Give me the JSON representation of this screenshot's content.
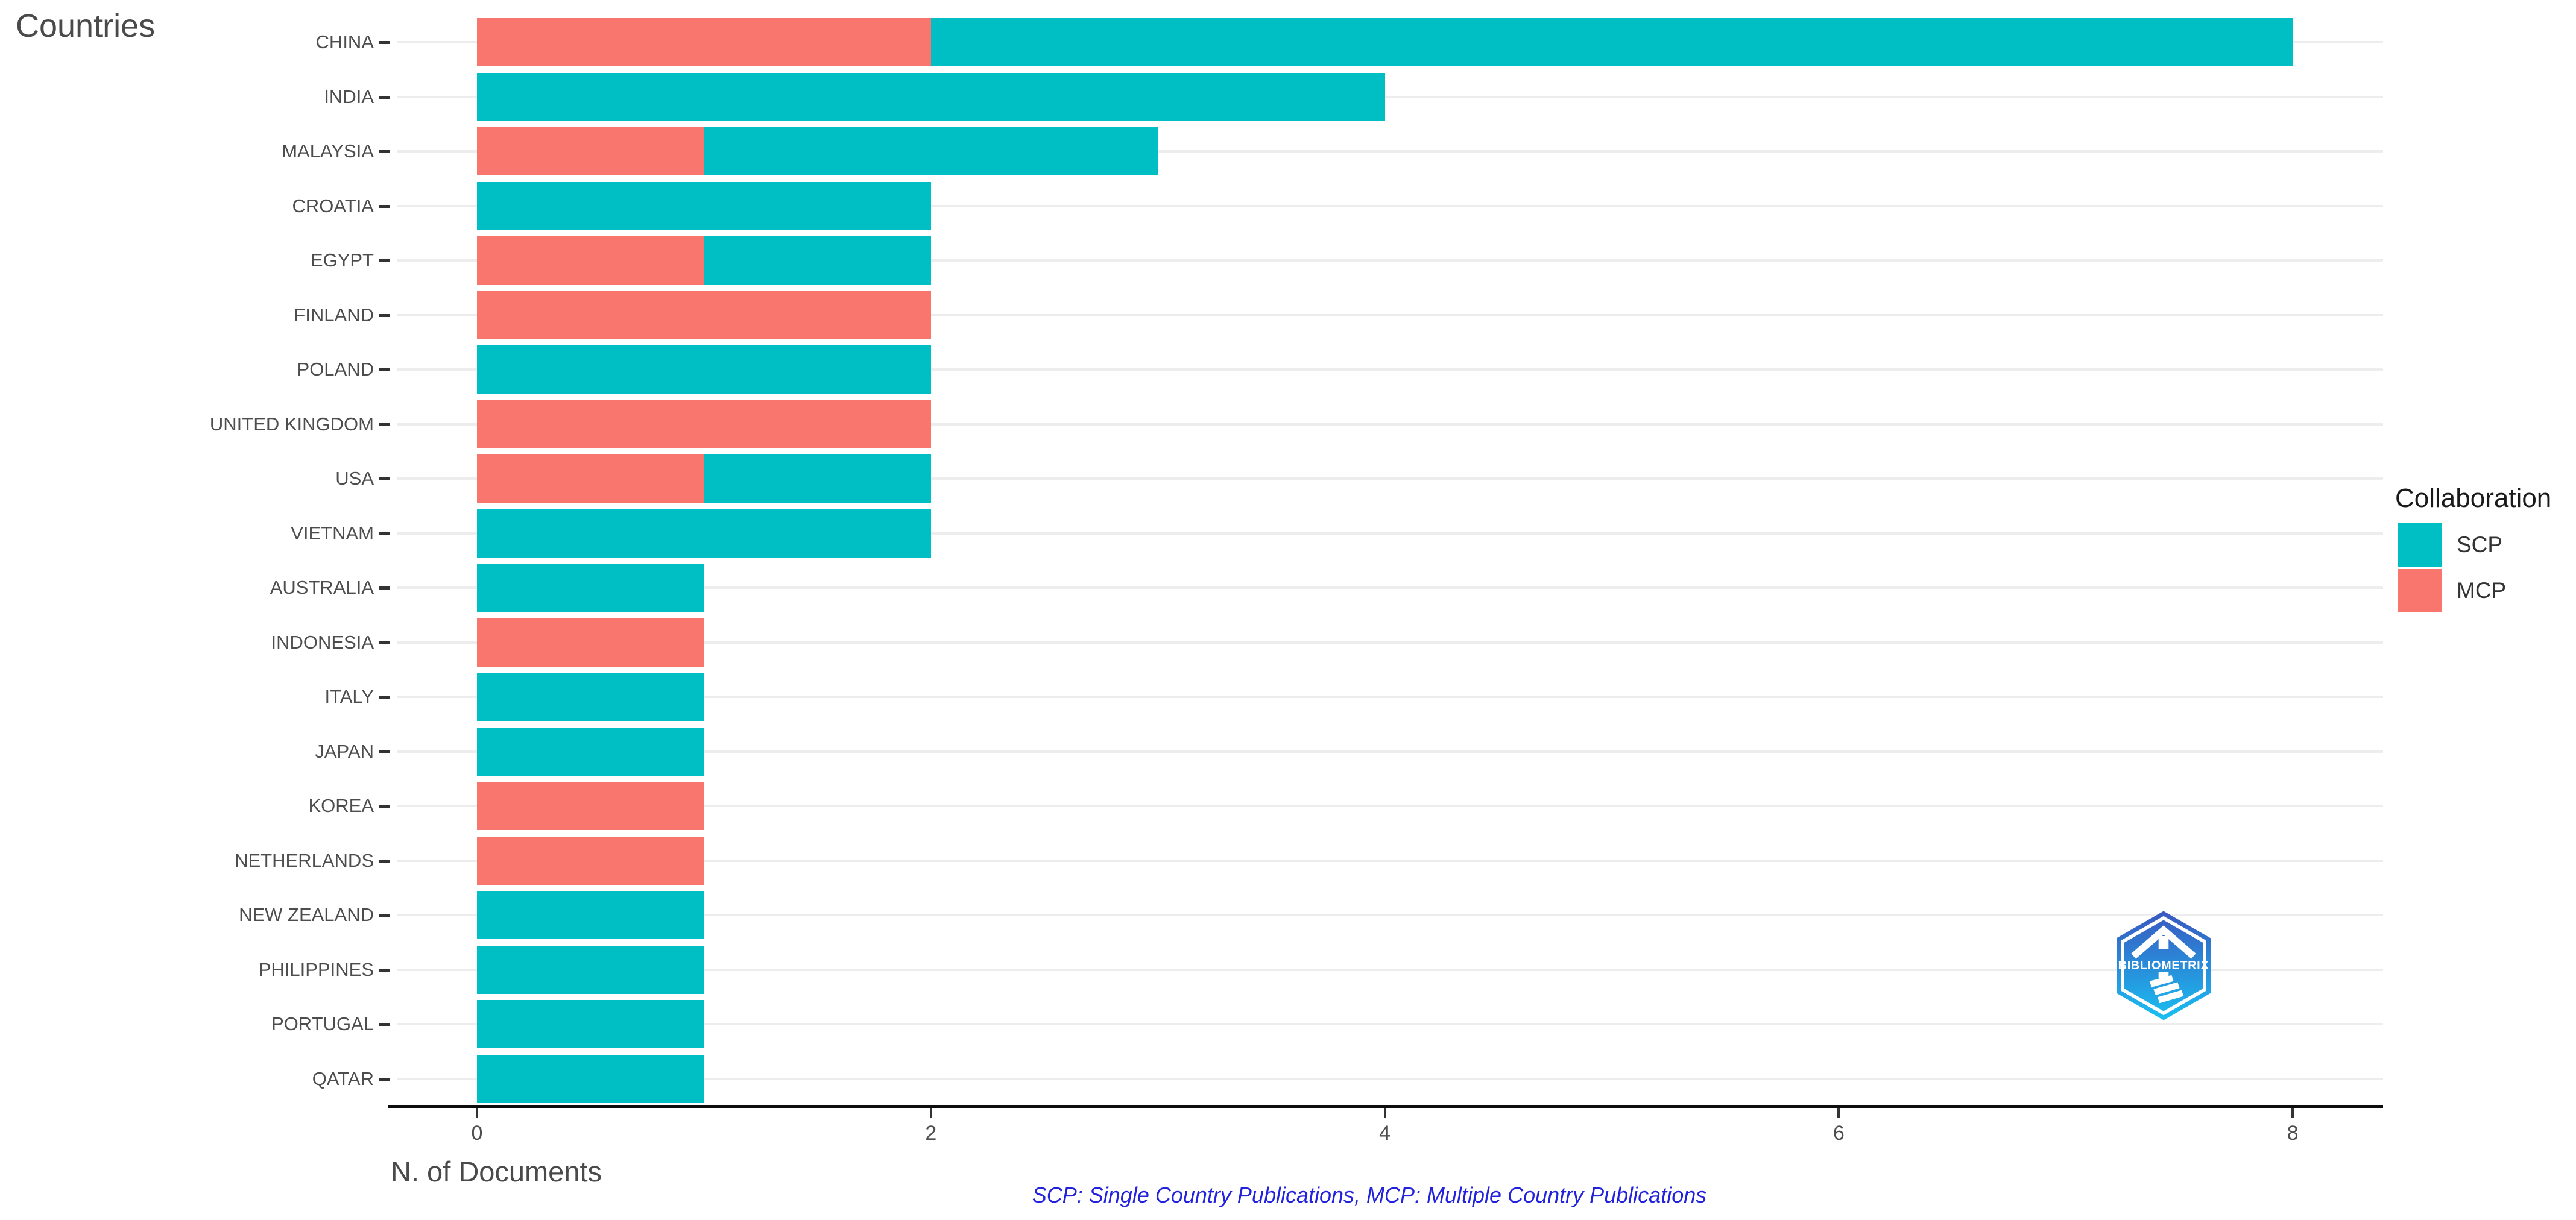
{
  "chart_data": {
    "type": "bar",
    "orientation": "horizontal",
    "stacked": true,
    "title": "Countries",
    "xlabel": "N. of Documents",
    "legend_title": "Collaboration",
    "legend_position": "right",
    "grid": "horizontal-only",
    "xlim": [
      0,
      8
    ],
    "x_ticks": [
      0,
      2,
      4,
      6,
      8
    ],
    "categories": [
      "CHINA",
      "INDIA",
      "MALAYSIA",
      "CROATIA",
      "EGYPT",
      "FINLAND",
      "POLAND",
      "UNITED KINGDOM",
      "USA",
      "VIETNAM",
      "AUSTRALIA",
      "INDONESIA",
      "ITALY",
      "JAPAN",
      "KOREA",
      "NETHERLANDS",
      "NEW ZEALAND",
      "PHILIPPINES",
      "PORTUGAL",
      "QATAR"
    ],
    "series": [
      {
        "name": "SCP",
        "color": "#00BFC4",
        "values": [
          6,
          4,
          2,
          2,
          1,
          0,
          2,
          0,
          1,
          2,
          1,
          0,
          1,
          1,
          0,
          0,
          1,
          1,
          1,
          1
        ]
      },
      {
        "name": "MCP",
        "color": "#F8766D",
        "values": [
          2,
          0,
          1,
          0,
          1,
          2,
          0,
          2,
          1,
          0,
          0,
          1,
          0,
          0,
          1,
          1,
          0,
          0,
          0,
          0
        ]
      }
    ],
    "totals": [
      8,
      4,
      3,
      2,
      2,
      2,
      2,
      2,
      2,
      2,
      1,
      1,
      1,
      1,
      1,
      1,
      1,
      1,
      1,
      1
    ],
    "stack_note": "MCP segment is drawn first (leftmost), SCP after it",
    "caption": "SCP: Single Country Publications, MCP: Multiple Country Publications"
  },
  "legend": {
    "title": "Collaboration",
    "items": [
      {
        "label": "SCP",
        "color": "#00BFC4"
      },
      {
        "label": "MCP",
        "color": "#F8766D"
      }
    ]
  },
  "logo": {
    "text": "BIBLIOMETRIX"
  },
  "colors": {
    "scp_teal": "#00BFC4",
    "mcp_salmon": "#F8766D",
    "gridline": "#EDEDED",
    "axis_line": "#0D0D0D",
    "tick_mark": "#333333",
    "axis_text": "#4D4D4D",
    "caption_blue": "#2222DD",
    "logo_gradient_top": "#3A57C0",
    "logo_gradient_bottom": "#19C0F2"
  }
}
